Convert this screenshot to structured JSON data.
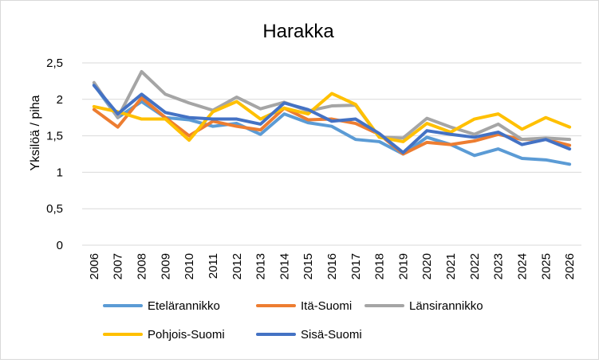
{
  "chart_data": {
    "type": "line",
    "title": "Harakka",
    "xlabel": "",
    "ylabel": "Yksilöä / piha",
    "x": [
      "2006",
      "2007",
      "2008",
      "2009",
      "2010",
      "2011",
      "2012",
      "2013",
      "2014",
      "2015",
      "2016",
      "2017",
      "2018",
      "2019",
      "2020",
      "2021",
      "2022",
      "2023",
      "2024",
      "2025",
      "2026"
    ],
    "ylim": [
      0,
      2.5
    ],
    "yticks": [
      "0",
      "0,5",
      "1",
      "1,5",
      "2",
      "2,5"
    ],
    "ytick_values": [
      0,
      0.5,
      1,
      1.5,
      2,
      2.5
    ],
    "grid": true,
    "legend_position": "bottom",
    "series": [
      {
        "name": "Etelärannikko",
        "color": "#5B9BD5",
        "values": [
          2.2,
          1.75,
          1.97,
          1.75,
          1.72,
          1.63,
          1.67,
          1.52,
          1.8,
          1.68,
          1.63,
          1.45,
          1.42,
          1.25,
          1.48,
          1.38,
          1.23,
          1.32,
          1.19,
          1.17,
          1.11
        ]
      },
      {
        "name": "Itä-Suomi",
        "color": "#ED7D31",
        "values": [
          1.86,
          1.62,
          2.02,
          1.75,
          1.5,
          1.7,
          1.63,
          1.58,
          1.88,
          1.72,
          1.73,
          1.67,
          1.52,
          1.25,
          1.41,
          1.38,
          1.43,
          1.52,
          1.45,
          1.45,
          1.37
        ]
      },
      {
        "name": "Länsirannikko",
        "color": "#A5A5A5",
        "values": [
          2.23,
          1.75,
          2.38,
          2.07,
          1.95,
          1.85,
          2.03,
          1.87,
          1.96,
          1.84,
          1.91,
          1.92,
          1.48,
          1.47,
          1.74,
          1.62,
          1.52,
          1.66,
          1.45,
          1.47,
          1.45
        ]
      },
      {
        "name": "Pohjois-Suomi",
        "color": "#FFC000",
        "values": [
          1.9,
          1.83,
          1.73,
          1.73,
          1.44,
          1.83,
          1.97,
          1.73,
          1.88,
          1.8,
          2.08,
          1.93,
          1.48,
          1.42,
          1.67,
          1.55,
          1.73,
          1.8,
          1.59,
          1.75,
          1.62
        ]
      },
      {
        "name": "Sisä-Suomi",
        "color": "#4472C4",
        "values": [
          2.19,
          1.8,
          2.07,
          1.82,
          1.75,
          1.73,
          1.73,
          1.66,
          1.95,
          1.86,
          1.7,
          1.73,
          1.53,
          1.27,
          1.57,
          1.52,
          1.48,
          1.55,
          1.38,
          1.45,
          1.32
        ]
      }
    ]
  }
}
